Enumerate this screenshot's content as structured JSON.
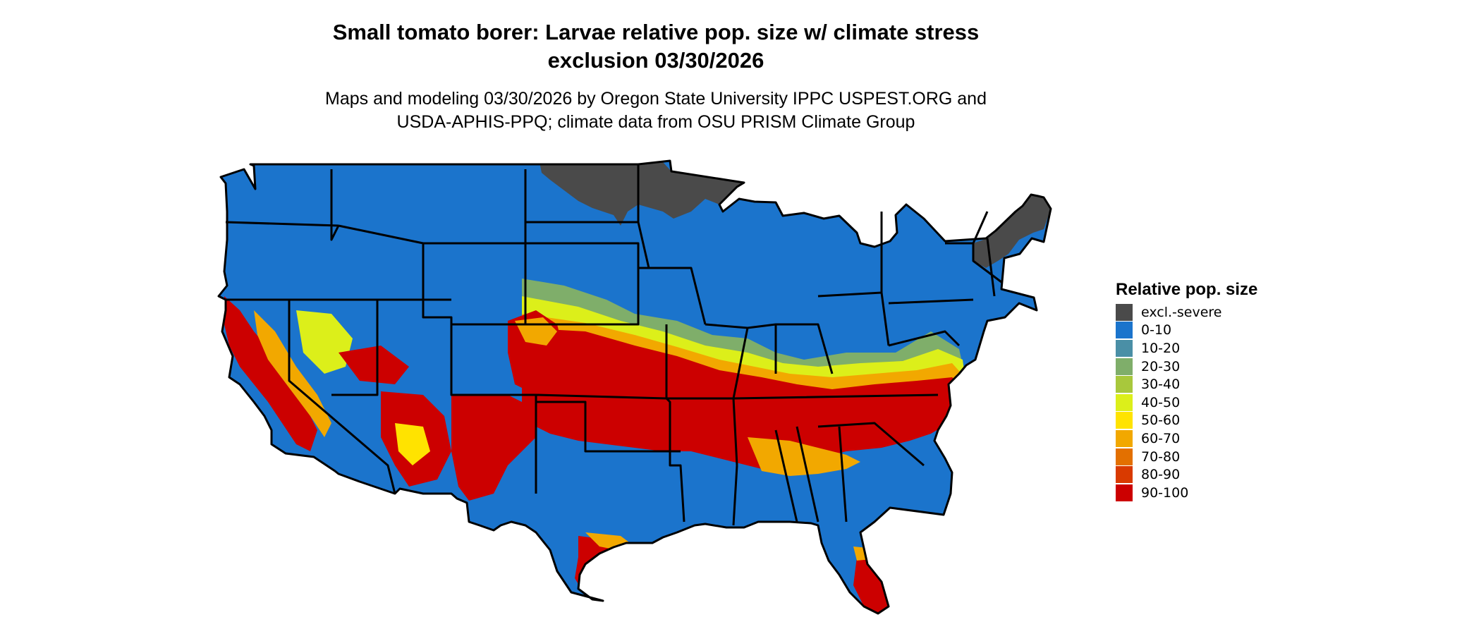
{
  "title_line1": "Small tomato borer: Larvae relative pop. size w/ climate stress",
  "title_line2": "exclusion 03/30/2026",
  "subtitle_line1": "Maps and modeling 03/30/2026 by Oregon State University IPPC USPEST.ORG and",
  "subtitle_line2": "USDA-APHIS-PPQ; climate data from OSU PRISM Climate Group",
  "legend": {
    "title": "Relative pop. size",
    "items": [
      {
        "label": "excl.-severe",
        "color": "#4a4a4a"
      },
      {
        "label": "0-10",
        "color": "#1b74cc"
      },
      {
        "label": "10-20",
        "color": "#4a8fa6"
      },
      {
        "label": "20-30",
        "color": "#7fae6a"
      },
      {
        "label": "30-40",
        "color": "#a8c83c"
      },
      {
        "label": "40-50",
        "color": "#dcef1a"
      },
      {
        "label": "50-60",
        "color": "#ffe300"
      },
      {
        "label": "60-70",
        "color": "#f2a800"
      },
      {
        "label": "70-80",
        "color": "#e37000"
      },
      {
        "label": "80-90",
        "color": "#d93a00"
      },
      {
        "label": "90-100",
        "color": "#cc0000"
      }
    ]
  }
}
